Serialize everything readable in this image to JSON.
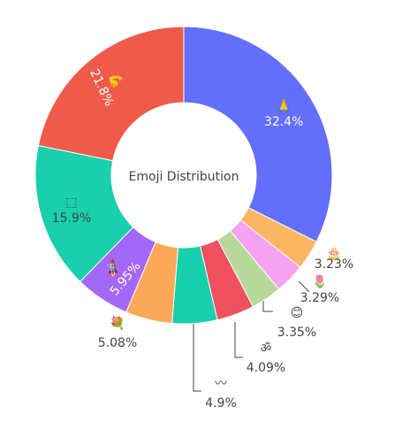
{
  "chart_data": {
    "type": "pie",
    "hole": true,
    "center_title": "Emoji Distribution",
    "slices": [
      {
        "emoji": "🙏",
        "percent_label": "32.4%",
        "value": 32.4,
        "color": "#636efa"
      },
      {
        "emoji": "🎂",
        "percent_label": "3.23%",
        "value": 3.23,
        "color": "#fcb661"
      },
      {
        "emoji": "🌷",
        "percent_label": "3.29%",
        "value": 3.29,
        "color": "#f6a2f0"
      },
      {
        "emoji": "😊",
        "percent_label": "3.35%",
        "value": 3.35,
        "color": "#b6d99b"
      },
      {
        "emoji": "ॐ",
        "percent_label": "4.09%",
        "value": 4.09,
        "color": "#ef5060"
      },
      {
        "emoji": "〰",
        "percent_label": "4.9%",
        "value": 4.9,
        "color": "#17cfab"
      },
      {
        "emoji": "💐",
        "percent_label": "5.08%",
        "value": 5.08,
        "color": "#fca859"
      },
      {
        "emoji": "🚀",
        "percent_label": "5.95%",
        "value": 5.95,
        "color": "#a468f6"
      },
      {
        "emoji": "⬚",
        "percent_label": "15.9%",
        "value": 15.9,
        "color": "#19cfac"
      },
      {
        "emoji": "💪",
        "percent_label": "21.8%",
        "value": 21.8,
        "color": "#ee5b4b"
      }
    ]
  }
}
